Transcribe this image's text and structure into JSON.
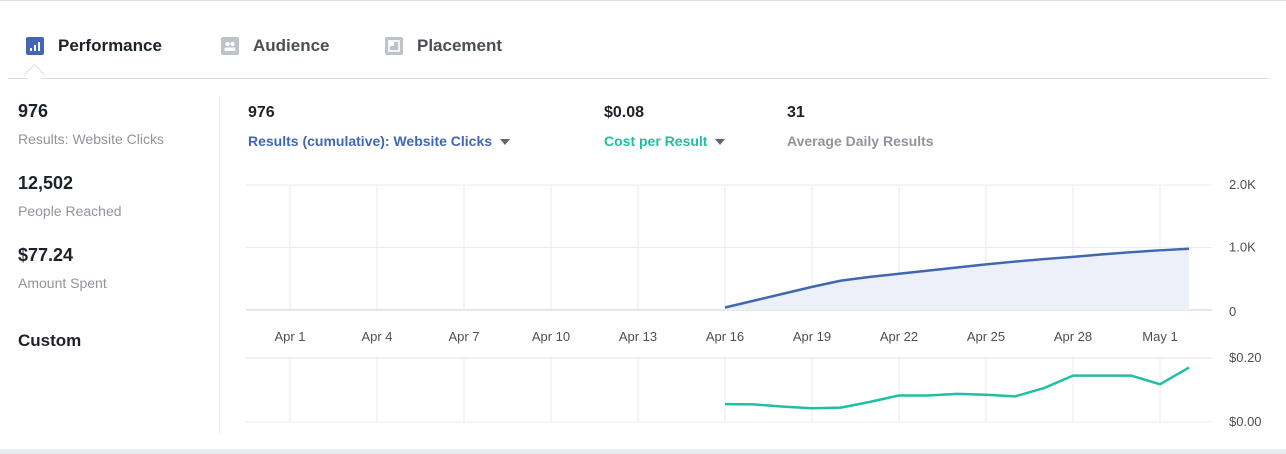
{
  "tabs": [
    {
      "label": "Performance",
      "icon": "bar-chart-icon",
      "active": true
    },
    {
      "label": "Audience",
      "icon": "people-icon",
      "active": false
    },
    {
      "label": "Placement",
      "icon": "placement-icon",
      "active": false
    }
  ],
  "summary": [
    {
      "value": "976",
      "label": "Results: Website Clicks"
    },
    {
      "value": "12,502",
      "label": "People Reached"
    },
    {
      "value": "$77.24",
      "label": "Amount Spent"
    }
  ],
  "date_range": "Custom",
  "metrics": [
    {
      "value": "976",
      "label": "Results (cumulative): Website Clicks",
      "color": "#4267b2",
      "dropdown": true
    },
    {
      "value": "$0.08",
      "label": "Cost per Result",
      "color": "#20bfa3",
      "dropdown": true
    },
    {
      "value": "31",
      "label": "Average Daily Results",
      "color": "#90949c",
      "dropdown": false
    }
  ],
  "colors": {
    "accent_blue": "#4267b2",
    "accent_teal": "#20bfa3",
    "area_fill": "#edf0f9",
    "grid": "#e9ebee",
    "axis_text": "#4b4f56"
  },
  "chart_data": [
    {
      "type": "area",
      "ylim": [
        0,
        2000
      ],
      "yticks": [
        "2.0K",
        "1.0K",
        "0"
      ],
      "x_tick_labels": [
        "Apr 1",
        "Apr 4",
        "Apr 7",
        "Apr 10",
        "Apr 13",
        "Apr 16",
        "Apr 19",
        "Apr 22",
        "Apr 25",
        "Apr 28",
        "May 1"
      ],
      "x_start": "Mar 29",
      "x_end": "May 2",
      "series": [
        {
          "name": "Results (cumulative): Website Clicks",
          "x": [
            "Apr 16",
            "Apr 17",
            "Apr 18",
            "Apr 19",
            "Apr 20",
            "Apr 21",
            "Apr 22",
            "Apr 23",
            "Apr 24",
            "Apr 25",
            "Apr 26",
            "Apr 27",
            "Apr 28",
            "Apr 29",
            "Apr 30",
            "May 1",
            "May 2"
          ],
          "values": [
            40,
            150,
            260,
            370,
            470,
            530,
            580,
            630,
            680,
            730,
            775,
            815,
            850,
            890,
            925,
            955,
            980
          ]
        }
      ]
    },
    {
      "type": "line",
      "ylim": [
        0,
        0.2
      ],
      "yticks": [
        "$0.20",
        "$0.00"
      ],
      "series": [
        {
          "name": "Cost per Result",
          "x": [
            "Apr 16",
            "Apr 17",
            "Apr 18",
            "Apr 19",
            "Apr 20",
            "Apr 21",
            "Apr 22",
            "Apr 23",
            "Apr 24",
            "Apr 25",
            "Apr 26",
            "Apr 27",
            "Apr 28",
            "Apr 29",
            "Apr 30",
            "May 1",
            "May 2"
          ],
          "values": [
            0.056,
            0.055,
            0.048,
            0.043,
            0.045,
            0.063,
            0.083,
            0.083,
            0.088,
            0.085,
            0.08,
            0.106,
            0.145,
            0.145,
            0.145,
            0.118,
            0.17
          ]
        }
      ]
    }
  ]
}
